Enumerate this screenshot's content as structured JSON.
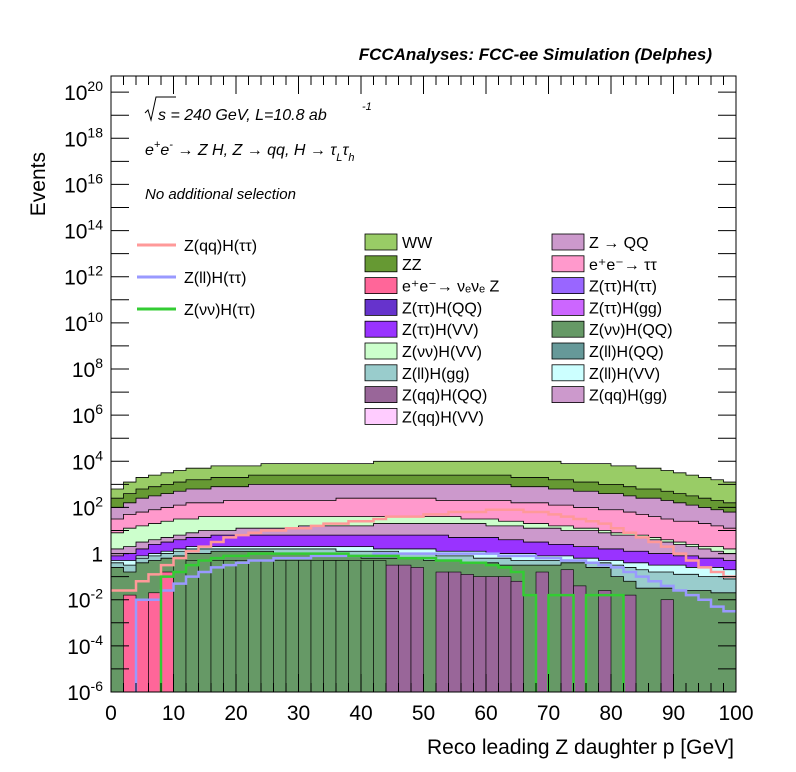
{
  "chart_data": {
    "type": "histogram-stacked",
    "title": "FCCAnalyses: FCC-ee Simulation (Delphes)",
    "annotations": {
      "line1_math": "√s = 240 GeV, L=10.8 ab⁻¹",
      "sqrt_s_label": "√s = 240 GeV, L=10.8 ab",
      "lumi_exp": "-1",
      "line2_process": "e⁺e⁻ → Z H, Z → qq, H → τ_L τ_h",
      "selection": "No additional selection"
    },
    "xlabel": "Reco leading Z daughter p [GeV]",
    "ylabel": "Events",
    "xlim": [
      0,
      100
    ],
    "ylim_log10": [
      -6,
      20.7
    ],
    "y_scale": "log",
    "x_ticks": [
      "0",
      "10",
      "20",
      "30",
      "40",
      "50",
      "60",
      "70",
      "80",
      "90",
      "100"
    ],
    "y_ticks_exp": [
      "-6",
      "-4",
      "-2",
      "0",
      "2",
      "4",
      "6",
      "8",
      "10",
      "12",
      "14",
      "16",
      "18",
      "20"
    ],
    "y_tick_one_label": "1",
    "bin_width": 2,
    "background_legend": [
      {
        "name": "WW",
        "color": "#99cc66"
      },
      {
        "name": "Z → QQ",
        "color": "#cc99cc"
      },
      {
        "name": "ZZ",
        "color": "#669933"
      },
      {
        "name": "e⁺e⁻→ ττ",
        "color": "#ff99cc"
      },
      {
        "name": "e⁺e⁻→ νₑνₑ Z",
        "color": "#ff6699"
      },
      {
        "name": "Z(ττ)H(ττ)",
        "color": "#9966ff"
      },
      {
        "name": "Z(ττ)H(QQ)",
        "color": "#6633cc"
      },
      {
        "name": "Z(ττ)H(gg)",
        "color": "#cc66ff"
      },
      {
        "name": "Z(ττ)H(VV)",
        "color": "#9933ff"
      },
      {
        "name": "Z(νν)H(QQ)",
        "color": "#669966"
      },
      {
        "name": "Z(νν)H(VV)",
        "color": "#ccffcc"
      },
      {
        "name": "Z(ll)H(QQ)",
        "color": "#669999"
      },
      {
        "name": "Z(ll)H(gg)",
        "color": "#99cccc"
      },
      {
        "name": "Z(ll)H(VV)",
        "color": "#ccffff"
      },
      {
        "name": "Z(qq)H(QQ)",
        "color": "#996699"
      },
      {
        "name": "Z(qq)H(gg)",
        "color": "#cc99cc"
      },
      {
        "name": "Z(qq)H(VV)",
        "color": "#ffccff"
      }
    ],
    "signal_legend": [
      {
        "name": "Z(qq)H(ττ)",
        "color": "#ff9999"
      },
      {
        "name": "Z(ll)H(ττ)",
        "color": "#9999ff"
      },
      {
        "name": "Z(νν)H(ττ)",
        "color": "#33cc33"
      }
    ],
    "stack_tops_log10": [
      {
        "name": "Z(νν)H(QQ)",
        "color": "#669966",
        "values": [
          -0.6,
          -0.8,
          -0.4,
          -0.3,
          -0.2,
          -0.1,
          0,
          0,
          0.1,
          0.1,
          0.1,
          0.1,
          0.1,
          0,
          0,
          0,
          0,
          0,
          -0.1,
          -0.1,
          -0.2,
          -0.2,
          -0.2,
          -0.2,
          -0.2,
          -0.3,
          -0.3,
          -0.3,
          -0.4,
          -0.4,
          -0.4,
          -0.5,
          -0.5,
          -0.5,
          -0.5,
          -0.5,
          -0.4,
          -0.4,
          -0.6,
          -0.6,
          -1,
          -1.2,
          -1.5,
          -1.5,
          -1.5,
          -1.6,
          -1.6,
          -1.6,
          -1.7,
          -1.7
        ]
      },
      {
        "name": "Z(ll)H(gg)",
        "color": "#99cccc",
        "values": [
          -0.4,
          -0.5,
          -0.2,
          -0.1,
          0,
          0.1,
          0.2,
          0.2,
          0.2,
          0.2,
          0.2,
          0.2,
          0.2,
          0.2,
          0.2,
          0.2,
          0.2,
          0.2,
          0.1,
          0.1,
          0.1,
          0.1,
          0.1,
          0,
          0,
          0,
          -0.1,
          -0.1,
          -0.1,
          -0.2,
          -0.2,
          -0.2,
          -0.3,
          -0.3,
          -0.3,
          -0.3,
          -0.3,
          -0.3,
          -0.4,
          -0.4,
          -0.5,
          -0.6,
          -0.7,
          -0.8,
          -0.8,
          -0.9,
          -0.9,
          -1,
          -1,
          -1.1
        ]
      },
      {
        "name": "Z(ll)H(VV)",
        "color": "#ccffff",
        "values": [
          -0.3,
          -0.3,
          -0.1,
          0,
          0.1,
          0.2,
          0.3,
          0.3,
          0.3,
          0.3,
          0.3,
          0.3,
          0.3,
          0.3,
          0.3,
          0.3,
          0.3,
          0.3,
          0.3,
          0.3,
          0.3,
          0.2,
          0.2,
          0.2,
          0.2,
          0.2,
          0.1,
          0.1,
          0.1,
          0.1,
          0,
          0,
          0,
          0,
          -0.1,
          -0.1,
          -0.1,
          -0.2,
          -0.2,
          -0.3,
          -0.3,
          -0.4,
          -0.4,
          -0.5,
          -0.5,
          -0.5,
          -0.6,
          -0.6,
          -0.6,
          -0.7
        ]
      },
      {
        "name": "Z(ττ)H(VV)",
        "color": "#9933ff",
        "values": [
          -0.1,
          0,
          0.2,
          0.4,
          0.5,
          0.6,
          0.7,
          0.7,
          0.8,
          0.8,
          0.8,
          0.8,
          0.8,
          0.8,
          0.8,
          0.8,
          0.8,
          0.8,
          0.8,
          0.8,
          0.8,
          0.8,
          0.8,
          0.8,
          0.8,
          0.8,
          0.8,
          0.7,
          0.7,
          0.7,
          0.7,
          0.6,
          0.6,
          0.5,
          0.5,
          0.4,
          0.4,
          0.3,
          0.3,
          0.2,
          0.2,
          0.1,
          0.1,
          0,
          0,
          -0.1,
          -0.1,
          -0.2,
          -0.2,
          -0.3
        ]
      },
      {
        "name": "Z(qq)H(gg)",
        "color": "#cc99cc",
        "values": [
          0.2,
          0.3,
          0.5,
          0.6,
          0.7,
          0.8,
          0.9,
          1,
          1,
          1,
          1.1,
          1.1,
          1.1,
          1.1,
          1.1,
          1.2,
          1.2,
          1.2,
          1.2,
          1.2,
          1.2,
          1.3,
          1.3,
          1.3,
          1.3,
          1.3,
          1.3,
          1.3,
          1.3,
          1.3,
          1.2,
          1.2,
          1.2,
          1.1,
          1.1,
          1.1,
          1,
          1,
          1,
          0.9,
          0.8,
          0.8,
          0.7,
          0.6,
          0.5,
          0.4,
          0.3,
          0.2,
          0.1,
          0
        ]
      },
      {
        "name": "Z(νν)H(VV)",
        "color": "#ccffcc",
        "values": [
          0.9,
          1.1,
          1.2,
          1.3,
          1.4,
          1.5,
          1.5,
          1.6,
          1.6,
          1.6,
          1.6,
          1.6,
          1.6,
          1.6,
          1.6,
          1.6,
          1.6,
          1.6,
          1.6,
          1.6,
          1.6,
          1.6,
          1.6,
          1.6,
          1.6,
          1.6,
          1.6,
          1.6,
          1.5,
          1.5,
          1.5,
          1.4,
          1.4,
          1.3,
          1.3,
          1.2,
          1.2,
          1.1,
          1.1,
          1,
          0.9,
          0.9,
          0.8,
          0.7,
          0.6,
          0.5,
          0.4,
          0.3,
          0.3,
          0.2
        ]
      },
      {
        "name": "e⁺e⁻→ ττ",
        "color": "#ff99cc",
        "values": [
          1.5,
          1.7,
          1.8,
          1.9,
          2,
          2.1,
          2.2,
          2.2,
          2.2,
          2.3,
          2.3,
          2.3,
          2.3,
          2.3,
          2.3,
          2.3,
          2.3,
          2.3,
          2.4,
          2.4,
          2.4,
          2.4,
          2.4,
          2.4,
          2.4,
          2.4,
          2.3,
          2.3,
          2.3,
          2.3,
          2.3,
          2.3,
          2.2,
          2.2,
          2.2,
          2.1,
          2.1,
          2,
          2,
          1.9,
          1.9,
          1.8,
          1.7,
          1.6,
          1.5,
          1.4,
          1.4,
          1.3,
          1.2,
          1.1
        ]
      },
      {
        "name": "Z → QQ",
        "color": "#cc99cc",
        "values": [
          2,
          2.2,
          2.4,
          2.5,
          2.6,
          2.7,
          2.8,
          2.8,
          2.9,
          2.9,
          2.9,
          3,
          3,
          3,
          3,
          3,
          3,
          3,
          3,
          3,
          3,
          3,
          3,
          3,
          3,
          3,
          3,
          3,
          3,
          3,
          3,
          3,
          2.9,
          2.9,
          2.9,
          2.8,
          2.8,
          2.7,
          2.7,
          2.6,
          2.6,
          2.5,
          2.4,
          2.4,
          2.3,
          2.2,
          2.1,
          2,
          1.9,
          1.8
        ]
      },
      {
        "name": "ZZ",
        "color": "#669933",
        "values": [
          2.4,
          2.6,
          2.8,
          2.9,
          3,
          3.1,
          3.2,
          3.2,
          3.3,
          3.3,
          3.3,
          3.4,
          3.4,
          3.4,
          3.4,
          3.4,
          3.4,
          3.4,
          3.4,
          3.4,
          3.4,
          3.4,
          3.4,
          3.4,
          3.4,
          3.4,
          3.4,
          3.4,
          3.4,
          3.4,
          3.4,
          3.4,
          3.3,
          3.3,
          3.3,
          3.2,
          3.2,
          3.1,
          3.1,
          3,
          3,
          2.9,
          2.8,
          2.8,
          2.7,
          2.6,
          2.5,
          2.4,
          2.3,
          2.2
        ]
      },
      {
        "name": "WW",
        "color": "#99cc66",
        "values": [
          2.8,
          3.1,
          3.3,
          3.4,
          3.5,
          3.6,
          3.7,
          3.7,
          3.8,
          3.8,
          3.8,
          3.8,
          3.9,
          3.9,
          3.9,
          3.9,
          3.9,
          3.9,
          3.9,
          3.9,
          3.9,
          4,
          4,
          4,
          4,
          4,
          4,
          4,
          4,
          4,
          4,
          4,
          4,
          4,
          4,
          4,
          3.9,
          3.9,
          3.9,
          3.9,
          3.8,
          3.8,
          3.7,
          3.7,
          3.6,
          3.5,
          3.4,
          3.3,
          3.2,
          3.1
        ]
      }
    ],
    "sparse_bars_log10": [
      {
        "name": "Z(qq)H(QQ)",
        "color": "#996699",
        "bins": [
          [
            34,
            -0.3
          ],
          [
            36,
            -0.3
          ],
          [
            38,
            -0.5
          ],
          [
            40,
            -0.5
          ],
          [
            42,
            -0.5
          ],
          [
            44,
            -0.5
          ],
          [
            46,
            -0.5
          ],
          [
            48,
            -0.6
          ],
          [
            52,
            -0.8
          ],
          [
            54,
            -0.8
          ],
          [
            56,
            -0.9
          ],
          [
            58,
            -1
          ],
          [
            60,
            -1
          ],
          [
            62,
            -1
          ],
          [
            64,
            -1.2
          ],
          [
            68,
            -0.8
          ],
          [
            72,
            -0.7
          ],
          [
            74,
            -1.4
          ],
          [
            78,
            -1.6
          ],
          [
            82,
            -1.8
          ],
          [
            88,
            -2
          ]
        ]
      },
      {
        "name": "e⁺e⁻→ νₑνₑ Z",
        "color": "#ff6699",
        "bins": [
          [
            2,
            -1.8
          ],
          [
            4,
            -2
          ],
          [
            6,
            -1.7
          ],
          [
            8,
            -0.8
          ],
          [
            12,
            -1
          ]
        ]
      },
      {
        "name": "Z(νν)H(QQ)",
        "color": "#669966",
        "bins": [
          [
            10,
            -0.2
          ],
          [
            12,
            -0.3
          ],
          [
            14,
            -0.3
          ],
          [
            16,
            -0.3
          ],
          [
            18,
            -0.3
          ],
          [
            20,
            -0.3
          ],
          [
            22,
            -0.3
          ],
          [
            24,
            -0.3
          ],
          [
            26,
            -0.3
          ],
          [
            28,
            -0.3
          ],
          [
            30,
            -0.3
          ],
          [
            32,
            -0.3
          ],
          [
            34,
            -0.3
          ],
          [
            36,
            -0.3
          ],
          [
            38,
            -0.3
          ],
          [
            40,
            -0.3
          ],
          [
            42,
            -0.3
          ]
        ]
      }
    ],
    "signal_lines_log10": [
      {
        "name": "Z(qq)H(ττ)",
        "color": "#ff9999",
        "values": [
          -1.6,
          -1.6,
          -1.2,
          -0.9,
          -0.5,
          -0.2,
          0.1,
          0.3,
          0.5,
          0.7,
          0.8,
          0.9,
          1,
          1,
          1.1,
          1.1,
          1.2,
          1.3,
          1.3,
          1.4,
          1.4,
          1.5,
          1.6,
          1.6,
          1.6,
          1.7,
          1.7,
          1.8,
          1.8,
          1.8,
          1.9,
          1.9,
          1.9,
          1.8,
          1.8,
          1.7,
          1.6,
          1.5,
          1.4,
          1.3,
          1.1,
          0.9,
          0.7,
          0.5,
          0.3,
          0,
          -0.3,
          -0.6,
          -0.8,
          -1
        ]
      },
      {
        "name": "Z(ll)H(ττ)",
        "color": "#9999ff",
        "values": [
          -7,
          -7,
          -2,
          -2,
          -1.6,
          -1.3,
          -1,
          -0.8,
          -0.6,
          -0.5,
          -0.4,
          -0.3,
          -0.3,
          -0.2,
          -0.2,
          -0.2,
          -0.1,
          -0.1,
          -0.1,
          -0.1,
          -0.1,
          0,
          0,
          0,
          0,
          0,
          0,
          0,
          0,
          0,
          0,
          -0.1,
          -0.1,
          -0.1,
          -0.2,
          -0.2,
          -0.3,
          -0.3,
          -0.4,
          -0.5,
          -0.6,
          -0.8,
          -1,
          -1.2,
          -1.4,
          -1.6,
          -1.8,
          -2,
          -2.3,
          -2.5
        ]
      },
      {
        "name": "Z(νν)H(ττ)",
        "color": "#33cc33",
        "values": [
          -7,
          -7,
          -7,
          -7,
          -1,
          -0.8,
          -0.5,
          -0.3,
          -0.2,
          -0.1,
          -0.1,
          0,
          0,
          0,
          0,
          0,
          0,
          0,
          0,
          -0.1,
          -0.1,
          -0.1,
          -0.1,
          -0.2,
          -0.2,
          -0.2,
          -0.3,
          -0.3,
          -0.4,
          -0.4,
          -0.5,
          -0.6,
          -0.8,
          -1.8,
          -7,
          -1.8,
          -1.8,
          -7,
          -1.8,
          -1.8,
          -1.8,
          -7,
          -7,
          -7,
          -7,
          -7,
          -7,
          -7,
          -7,
          -7
        ]
      }
    ]
  }
}
